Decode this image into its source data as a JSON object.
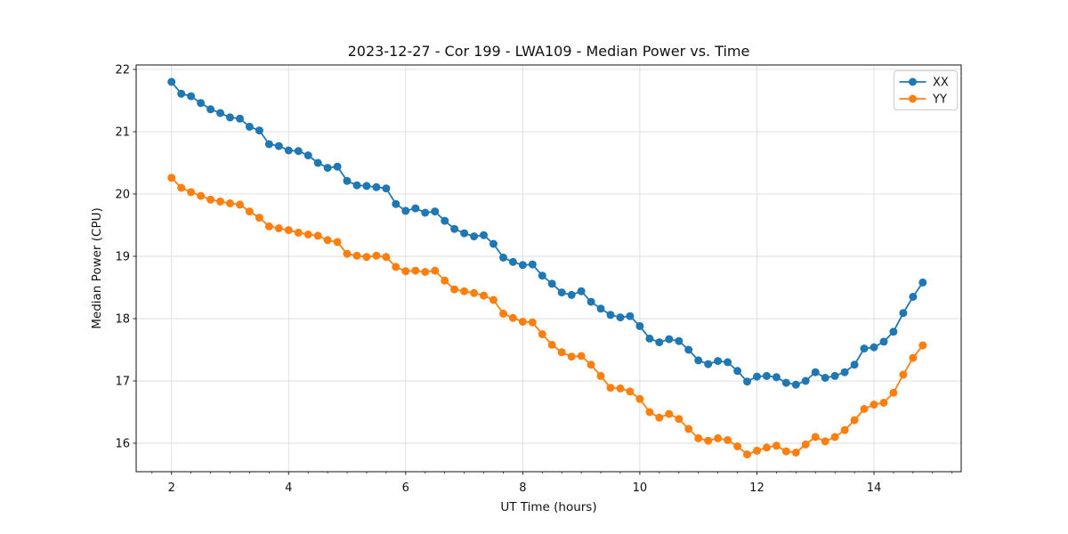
{
  "chart_data": {
    "type": "line",
    "title": "2023-12-27 - Cor 199 - LWA109 - Median Power vs. Time",
    "xlabel": "UT Time (hours)",
    "ylabel": "Median Power (CPU)",
    "xlim": [
      1.396,
      15.49
    ],
    "ylim": [
      15.543,
      22.071
    ],
    "x_major_ticks": [
      2,
      4,
      6,
      8,
      10,
      12,
      14
    ],
    "x_minor_step": 0.3333,
    "y_major_ticks": [
      16,
      17,
      18,
      19,
      20,
      21,
      22
    ],
    "grid": true,
    "legend_position": "upper right",
    "x_step_hours": 0.167,
    "x": [
      2.0,
      2.167,
      2.333,
      2.5,
      2.667,
      2.833,
      3.0,
      3.167,
      3.333,
      3.5,
      3.667,
      3.833,
      4.0,
      4.167,
      4.333,
      4.5,
      4.667,
      4.833,
      5.0,
      5.167,
      5.333,
      5.5,
      5.667,
      5.833,
      6.0,
      6.167,
      6.333,
      6.5,
      6.667,
      6.833,
      7.0,
      7.167,
      7.333,
      7.5,
      7.667,
      7.833,
      8.0,
      8.167,
      8.333,
      8.5,
      8.667,
      8.833,
      9.0,
      9.167,
      9.333,
      9.5,
      9.667,
      9.833,
      10.0,
      10.167,
      10.333,
      10.5,
      10.667,
      10.833,
      11.0,
      11.167,
      11.333,
      11.5,
      11.667,
      11.833,
      12.0,
      12.167,
      12.333,
      12.5,
      12.667,
      12.833,
      13.0,
      13.167,
      13.333,
      13.5,
      13.667,
      13.833,
      14.0,
      14.167,
      14.333,
      14.5,
      14.667,
      14.833
    ],
    "series": [
      {
        "name": "XX",
        "color": "#1f77b4",
        "values": [
          21.8,
          21.61,
          21.57,
          21.46,
          21.36,
          21.3,
          21.23,
          21.21,
          21.08,
          21.02,
          20.8,
          20.77,
          20.7,
          20.69,
          20.62,
          20.5,
          20.42,
          20.44,
          20.21,
          20.14,
          20.13,
          20.11,
          20.09,
          19.84,
          19.73,
          19.77,
          19.7,
          19.72,
          19.57,
          19.44,
          19.37,
          19.32,
          19.34,
          19.2,
          18.98,
          18.91,
          18.86,
          18.87,
          18.69,
          18.56,
          18.42,
          18.38,
          18.44,
          18.27,
          18.16,
          18.06,
          18.02,
          18.04,
          17.88,
          17.68,
          17.62,
          17.67,
          17.64,
          17.5,
          17.33,
          17.27,
          17.32,
          17.3,
          17.16,
          16.99,
          17.07,
          17.08,
          17.06,
          16.97,
          16.94,
          17.0,
          17.14,
          17.05,
          17.08,
          17.14,
          17.26,
          17.52,
          17.54,
          17.63,
          17.79,
          18.09,
          18.35,
          18.58
        ]
      },
      {
        "name": "YY",
        "color": "#ff7f0e",
        "values": [
          20.26,
          20.1,
          20.03,
          19.97,
          19.91,
          19.88,
          19.85,
          19.83,
          19.72,
          19.62,
          19.48,
          19.45,
          19.42,
          19.38,
          19.35,
          19.33,
          19.26,
          19.23,
          19.04,
          19.01,
          18.99,
          19.01,
          18.99,
          18.83,
          18.76,
          18.77,
          18.75,
          18.77,
          18.61,
          18.47,
          18.44,
          18.41,
          18.37,
          18.3,
          18.08,
          18.01,
          17.95,
          17.94,
          17.75,
          17.58,
          17.46,
          17.39,
          17.4,
          17.26,
          17.08,
          16.89,
          16.88,
          16.83,
          16.71,
          16.5,
          16.41,
          16.47,
          16.39,
          16.23,
          16.08,
          16.04,
          16.08,
          16.05,
          15.95,
          15.82,
          15.88,
          15.93,
          15.96,
          15.87,
          15.85,
          15.98,
          16.1,
          16.03,
          16.1,
          16.21,
          16.37,
          16.55,
          16.62,
          16.65,
          16.81,
          17.1,
          17.37,
          17.57
        ]
      }
    ]
  }
}
